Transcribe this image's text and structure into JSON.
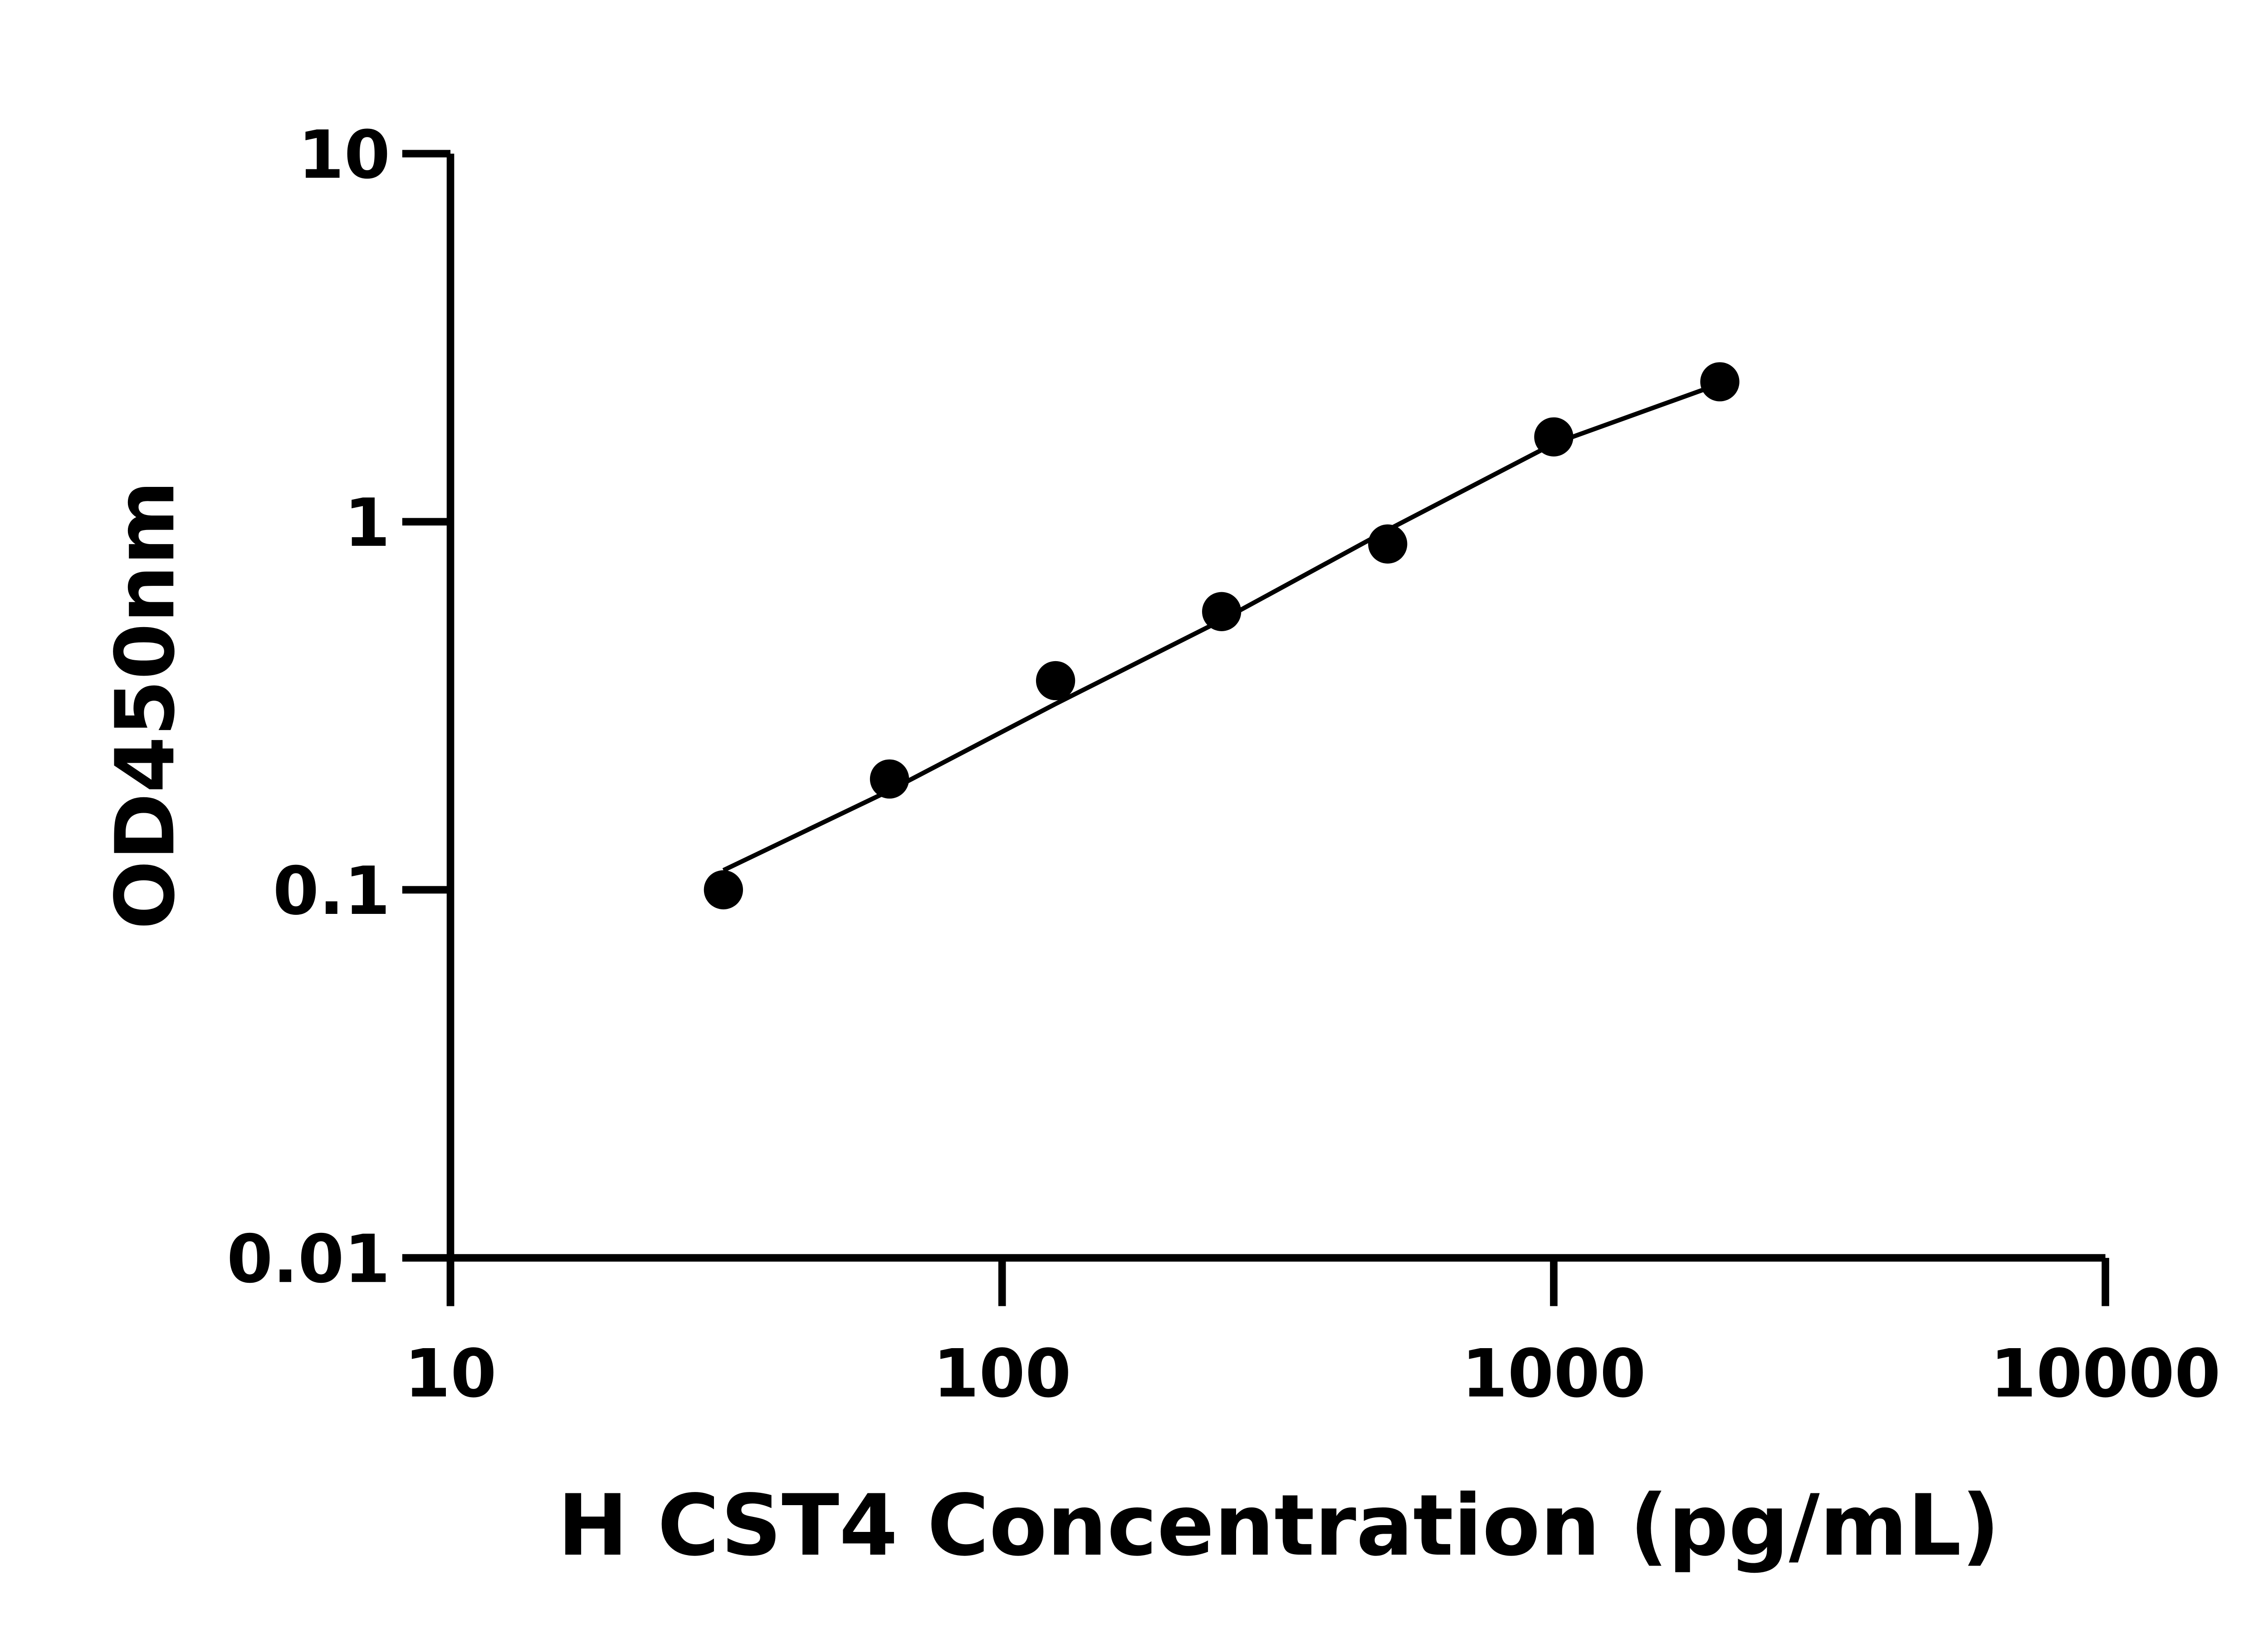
{
  "chart_data": {
    "type": "scatter",
    "x_label": "H CST4 Concentration (pg/mL)",
    "y_label": "OD450nm",
    "x_log": true,
    "y_log": true,
    "xlim": [
      10,
      10000
    ],
    "xticks": [
      10,
      100,
      1000,
      10000
    ],
    "ylim": [
      0.01,
      10
    ],
    "yticks": [
      0.01,
      0.1,
      1,
      10
    ],
    "series": [
      {
        "mode": "markers",
        "color": "#000000",
        "x": [
          31.25,
          62.5,
          125,
          250,
          500,
          1000,
          2000
        ],
        "values": [
          0.1,
          0.2,
          0.37,
          0.57,
          0.87,
          1.7,
          2.4
        ]
      },
      {
        "mode": "line",
        "color": "#000000",
        "x": [
          31.25,
          62.5,
          125,
          250,
          500,
          1000,
          2000
        ],
        "values": [
          0.113,
          0.186,
          0.32,
          0.54,
          0.95,
          1.63,
          2.37
        ]
      }
    ]
  }
}
